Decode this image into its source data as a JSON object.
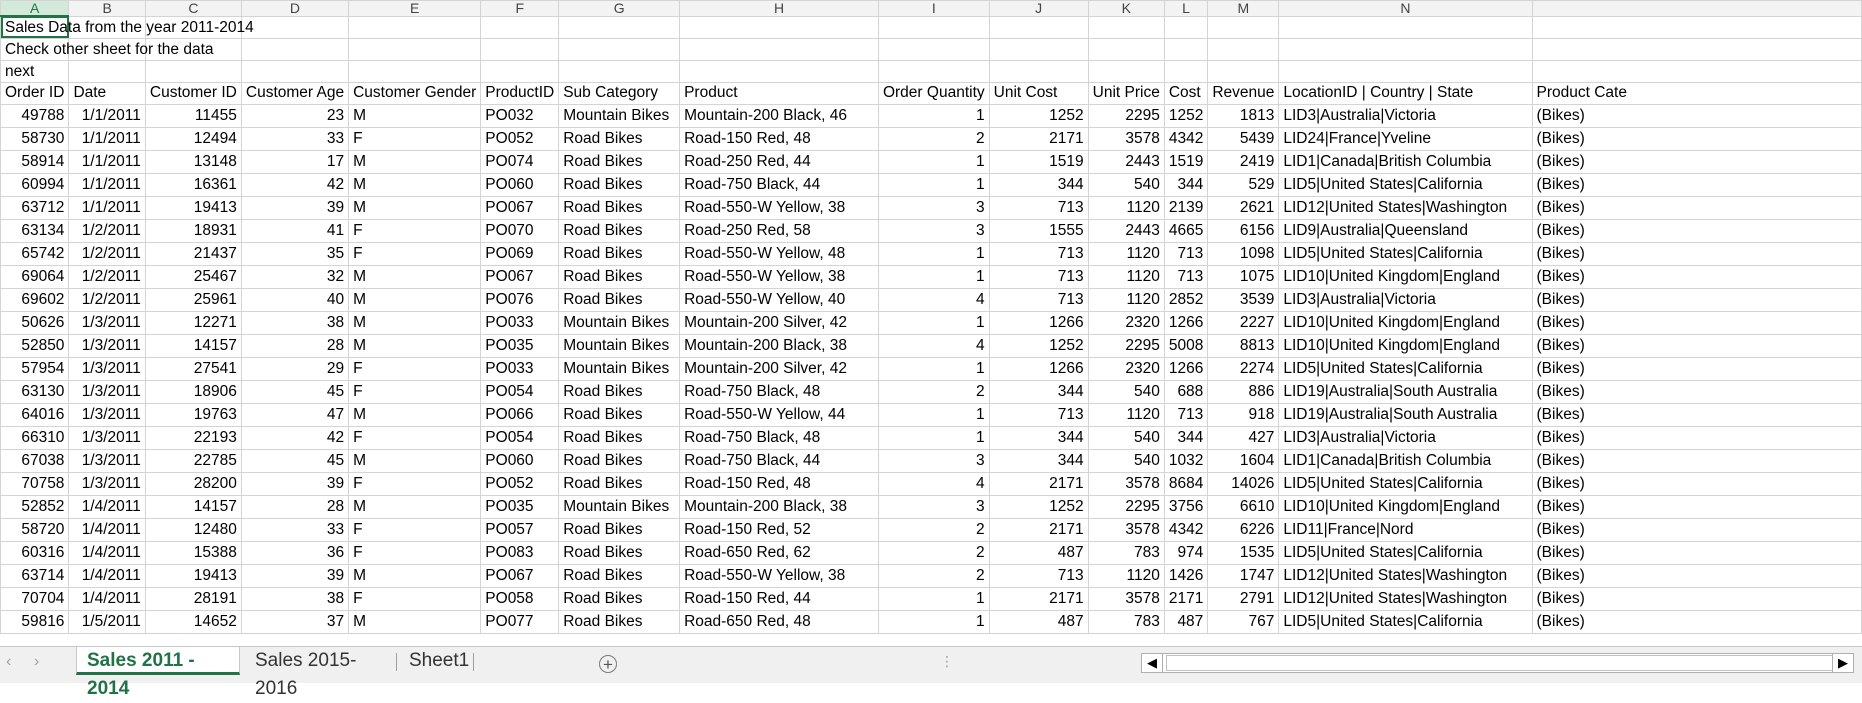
{
  "columns": [
    "A",
    "B",
    "C",
    "D",
    "E",
    "F",
    "G",
    "H",
    "I",
    "J",
    "K",
    "L",
    "M",
    "N",
    ""
  ],
  "notes": {
    "row1": "Sales Data from the year 2011-2014",
    "row2": "Check other sheet for the data",
    "row3": "next"
  },
  "headers": [
    "Order ID",
    "Date",
    "Customer ID",
    "Customer Age",
    "Customer Gender",
    "ProductID",
    "Sub Category",
    "Product",
    "Order Quantity",
    "Unit Cost",
    "Unit Price",
    "Cost",
    "Revenue",
    "LocationID | Country | State",
    "Product Cate"
  ],
  "rows": [
    [
      "49788",
      "1/1/2011",
      "11455",
      "23",
      "M",
      "PO032",
      "Mountain Bikes",
      "Mountain-200 Black, 46",
      "1",
      "1252",
      "2295",
      "1252",
      "1813",
      "LID3|Australia|Victoria",
      "(Bikes)"
    ],
    [
      "58730",
      "1/1/2011",
      "12494",
      "33",
      "F",
      "PO052",
      "Road Bikes",
      "Road-150 Red, 48",
      "2",
      "2171",
      "3578",
      "4342",
      "5439",
      "LID24|France|Yveline",
      "(Bikes)"
    ],
    [
      "58914",
      "1/1/2011",
      "13148",
      "17",
      "M",
      "PO074",
      "Road Bikes",
      "Road-250 Red, 44",
      "1",
      "1519",
      "2443",
      "1519",
      "2419",
      "LID1|Canada|British Columbia",
      "(Bikes)"
    ],
    [
      "60994",
      "1/1/2011",
      "16361",
      "42",
      "M",
      "PO060",
      "Road Bikes",
      "Road-750 Black, 44",
      "1",
      "344",
      "540",
      "344",
      "529",
      "LID5|United States|California",
      "(Bikes)"
    ],
    [
      "63712",
      "1/1/2011",
      "19413",
      "39",
      "M",
      "PO067",
      "Road Bikes",
      "Road-550-W Yellow, 38",
      "3",
      "713",
      "1120",
      "2139",
      "2621",
      "LID12|United States|Washington",
      "(Bikes)"
    ],
    [
      "63134",
      "1/2/2011",
      "18931",
      "41",
      "F",
      "PO070",
      "Road Bikes",
      "Road-250 Red, 58",
      "3",
      "1555",
      "2443",
      "4665",
      "6156",
      "LID9|Australia|Queensland",
      "(Bikes)"
    ],
    [
      "65742",
      "1/2/2011",
      "21437",
      "35",
      "F",
      "PO069",
      "Road Bikes",
      "Road-550-W Yellow, 48",
      "1",
      "713",
      "1120",
      "713",
      "1098",
      "LID5|United States|California",
      "(Bikes)"
    ],
    [
      "69064",
      "1/2/2011",
      "25467",
      "32",
      "M",
      "PO067",
      "Road Bikes",
      "Road-550-W Yellow, 38",
      "1",
      "713",
      "1120",
      "713",
      "1075",
      "LID10|United Kingdom|England",
      "(Bikes)"
    ],
    [
      "69602",
      "1/2/2011",
      "25961",
      "40",
      "M",
      "PO076",
      "Road Bikes",
      "Road-550-W Yellow, 40",
      "4",
      "713",
      "1120",
      "2852",
      "3539",
      "LID3|Australia|Victoria",
      "(Bikes)"
    ],
    [
      "50626",
      "1/3/2011",
      "12271",
      "38",
      "M",
      "PO033",
      "Mountain Bikes",
      "Mountain-200 Silver, 42",
      "1",
      "1266",
      "2320",
      "1266",
      "2227",
      "LID10|United Kingdom|England",
      "(Bikes)"
    ],
    [
      "52850",
      "1/3/2011",
      "14157",
      "28",
      "M",
      "PO035",
      "Mountain Bikes",
      "Mountain-200 Black, 38",
      "4",
      "1252",
      "2295",
      "5008",
      "8813",
      "LID10|United Kingdom|England",
      "(Bikes)"
    ],
    [
      "57954",
      "1/3/2011",
      "27541",
      "29",
      "F",
      "PO033",
      "Mountain Bikes",
      "Mountain-200 Silver, 42",
      "1",
      "1266",
      "2320",
      "1266",
      "2274",
      "LID5|United States|California",
      "(Bikes)"
    ],
    [
      "63130",
      "1/3/2011",
      "18906",
      "45",
      "F",
      "PO054",
      "Road Bikes",
      "Road-750 Black, 48",
      "2",
      "344",
      "540",
      "688",
      "886",
      "LID19|Australia|South Australia",
      "(Bikes)"
    ],
    [
      "64016",
      "1/3/2011",
      "19763",
      "47",
      "M",
      "PO066",
      "Road Bikes",
      "Road-550-W Yellow, 44",
      "1",
      "713",
      "1120",
      "713",
      "918",
      "LID19|Australia|South Australia",
      "(Bikes)"
    ],
    [
      "66310",
      "1/3/2011",
      "22193",
      "42",
      "F",
      "PO054",
      "Road Bikes",
      "Road-750 Black, 48",
      "1",
      "344",
      "540",
      "344",
      "427",
      "LID3|Australia|Victoria",
      "(Bikes)"
    ],
    [
      "67038",
      "1/3/2011",
      "22785",
      "45",
      "M",
      "PO060",
      "Road Bikes",
      "Road-750 Black, 44",
      "3",
      "344",
      "540",
      "1032",
      "1604",
      "LID1|Canada|British Columbia",
      "(Bikes)"
    ],
    [
      "70758",
      "1/3/2011",
      "28200",
      "39",
      "F",
      "PO052",
      "Road Bikes",
      "Road-150 Red, 48",
      "4",
      "2171",
      "3578",
      "8684",
      "14026",
      "LID5|United States|California",
      "(Bikes)"
    ],
    [
      "52852",
      "1/4/2011",
      "14157",
      "28",
      "M",
      "PO035",
      "Mountain Bikes",
      "Mountain-200 Black, 38",
      "3",
      "1252",
      "2295",
      "3756",
      "6610",
      "LID10|United Kingdom|England",
      "(Bikes)"
    ],
    [
      "58720",
      "1/4/2011",
      "12480",
      "33",
      "F",
      "PO057",
      "Road Bikes",
      "Road-150 Red, 52",
      "2",
      "2171",
      "3578",
      "4342",
      "6226",
      "LID11|France|Nord",
      "(Bikes)"
    ],
    [
      "60316",
      "1/4/2011",
      "15388",
      "36",
      "F",
      "PO083",
      "Road Bikes",
      "Road-650 Red, 62",
      "2",
      "487",
      "783",
      "974",
      "1535",
      "LID5|United States|California",
      "(Bikes)"
    ],
    [
      "63714",
      "1/4/2011",
      "19413",
      "39",
      "M",
      "PO067",
      "Road Bikes",
      "Road-550-W Yellow, 38",
      "2",
      "713",
      "1120",
      "1426",
      "1747",
      "LID12|United States|Washington",
      "(Bikes)"
    ],
    [
      "70704",
      "1/4/2011",
      "28191",
      "38",
      "F",
      "PO058",
      "Road Bikes",
      "Road-150 Red, 44",
      "1",
      "2171",
      "3578",
      "2171",
      "2791",
      "LID12|United States|Washington",
      "(Bikes)"
    ],
    [
      "59816",
      "1/5/2011",
      "14652",
      "37",
      "M",
      "PO077",
      "Road Bikes",
      "Road-650 Red, 48",
      "1",
      "487",
      "783",
      "487",
      "767",
      "LID5|United States|California",
      "(Bikes)"
    ]
  ],
  "tabs": [
    "Sales 2011 - 2014",
    "Sales 2015- 2016",
    "Sheet1"
  ],
  "icons": {
    "add_sheet": "+",
    "nav_left": "◀",
    "nav_right": "▶",
    "dots": "⋮"
  },
  "colors": {
    "accent": "#217346"
  }
}
